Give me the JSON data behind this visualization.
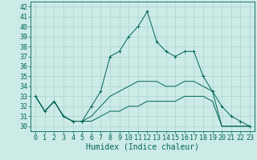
{
  "xlabel": "Humidex (Indice chaleur)",
  "bg_color": "#cceae6",
  "grid_color": "#aad4ce",
  "line_color": "#006655",
  "xlim": [
    -0.5,
    23.5
  ],
  "ylim": [
    29.5,
    42.5
  ],
  "xticks": [
    0,
    1,
    2,
    3,
    4,
    5,
    6,
    7,
    8,
    9,
    10,
    11,
    12,
    13,
    14,
    15,
    16,
    17,
    18,
    19,
    20,
    21,
    22,
    23
  ],
  "yticks": [
    30,
    31,
    32,
    33,
    34,
    35,
    36,
    37,
    38,
    39,
    40,
    41,
    42
  ],
  "series": [
    {
      "x": [
        0,
        1,
        2,
        3,
        4,
        5,
        6,
        7,
        8,
        9,
        10,
        11,
        12,
        13,
        14,
        15,
        16,
        17,
        18,
        19,
        20,
        21,
        22,
        23
      ],
      "y": [
        33,
        31.5,
        32.5,
        31,
        30.5,
        30.5,
        32,
        33.5,
        37,
        37.5,
        39.0,
        40.0,
        41.5,
        38.5,
        37.5,
        37.0,
        37.5,
        37.5,
        35.0,
        33.5,
        32.0,
        31.0,
        30.5,
        30.0
      ],
      "marker": "+"
    },
    {
      "x": [
        0,
        1,
        2,
        3,
        4,
        5,
        6,
        7,
        8,
        9,
        10,
        11,
        12,
        13,
        14,
        15,
        16,
        17,
        18,
        19,
        20,
        21,
        22,
        23
      ],
      "y": [
        33,
        31.5,
        32.5,
        31,
        30.5,
        30.5,
        31.0,
        32.0,
        33.0,
        33.5,
        34.0,
        34.5,
        34.5,
        34.5,
        34.0,
        34.0,
        34.5,
        34.5,
        34.0,
        33.5,
        30.0,
        30.0,
        30.0,
        30.0
      ],
      "marker": null
    },
    {
      "x": [
        0,
        1,
        2,
        3,
        4,
        5,
        6,
        7,
        8,
        9,
        10,
        11,
        12,
        13,
        14,
        15,
        16,
        17,
        18,
        19,
        20,
        21,
        22,
        23
      ],
      "y": [
        33,
        31.5,
        32.5,
        31,
        30.5,
        30.5,
        30.5,
        31.0,
        31.5,
        31.5,
        32.0,
        32.0,
        32.5,
        32.5,
        32.5,
        32.5,
        33.0,
        33.0,
        33.0,
        32.5,
        30.0,
        30.0,
        30.0,
        30.0
      ],
      "marker": null
    }
  ],
  "font_family": "monospace",
  "xlabel_fontsize": 7,
  "tick_fontsize": 6
}
